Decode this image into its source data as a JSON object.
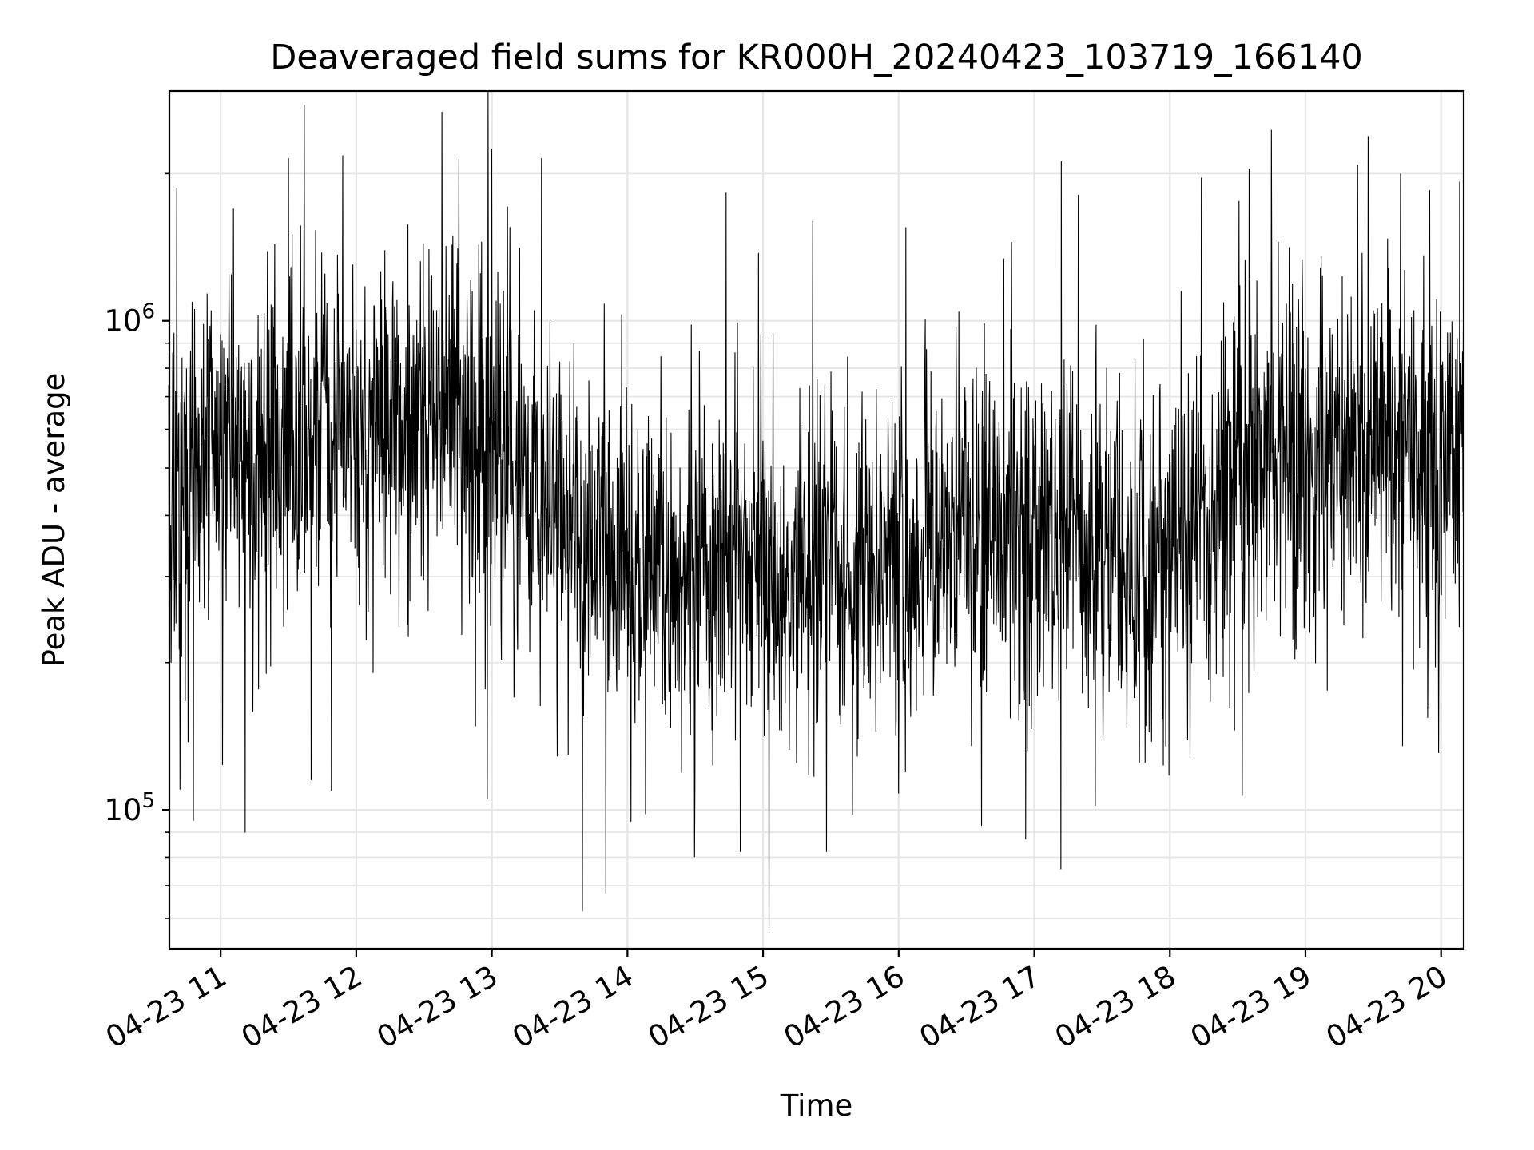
{
  "chart_data": {
    "type": "line",
    "title": "Deaveraged field sums for KR000H_20240423_103719_166140",
    "xlabel": "Time",
    "ylabel": "Peak ADU - average",
    "y_scale": "log",
    "ylim": [
      52000,
      2950000
    ],
    "xlim": [
      "2024-04-23 10:37:19",
      "2024-04-23 20:10:00"
    ],
    "x_ticks": [
      {
        "value": "2024-04-23 11:00",
        "label": "04-23 11"
      },
      {
        "value": "2024-04-23 12:00",
        "label": "04-23 12"
      },
      {
        "value": "2024-04-23 13:00",
        "label": "04-23 13"
      },
      {
        "value": "2024-04-23 14:00",
        "label": "04-23 14"
      },
      {
        "value": "2024-04-23 15:00",
        "label": "04-23 15"
      },
      {
        "value": "2024-04-23 16:00",
        "label": "04-23 16"
      },
      {
        "value": "2024-04-23 17:00",
        "label": "04-23 17"
      },
      {
        "value": "2024-04-23 18:00",
        "label": "04-23 18"
      },
      {
        "value": "2024-04-23 19:00",
        "label": "04-23 19"
      },
      {
        "value": "2024-04-23 20:00",
        "label": "04-23 20"
      }
    ],
    "y_ticks": [
      {
        "value": 100000,
        "base": "10",
        "exp": "5"
      },
      {
        "value": 1000000,
        "base": "10",
        "exp": "6"
      }
    ],
    "grid": true,
    "series_color": "#000000",
    "grid_color": "#e6e6e6",
    "typical_level": [
      [
        "2024-04-23 10:40",
        430000
      ],
      [
        "2024-04-23 11:00",
        520000
      ],
      [
        "2024-04-23 12:00",
        590000
      ],
      [
        "2024-04-23 12:45",
        620000
      ],
      [
        "2024-04-23 13:30",
        420000
      ],
      [
        "2024-04-23 14:00",
        330000
      ],
      [
        "2024-04-23 15:00",
        300000
      ],
      [
        "2024-04-23 15:40",
        310000
      ],
      [
        "2024-04-23 16:30",
        370000
      ],
      [
        "2024-04-23 17:15",
        380000
      ],
      [
        "2024-04-23 17:50",
        290000
      ],
      [
        "2024-04-23 18:30",
        510000
      ],
      [
        "2024-04-23 19:30",
        550000
      ],
      [
        "2024-04-23 20:10",
        500000
      ]
    ],
    "notable_points": [
      [
        "2024-04-23 10:38",
        200000
      ],
      [
        "2024-04-23 10:42",
        110000
      ],
      [
        "2024-04-23 10:48",
        95000
      ],
      [
        "2024-04-23 11:30",
        2150000
      ],
      [
        "2024-04-23 11:40",
        115000
      ],
      [
        "2024-04-23 11:54",
        2180000
      ],
      [
        "2024-04-23 12:58",
        105000
      ],
      [
        "2024-04-23 13:00",
        2250000
      ],
      [
        "2024-04-23 13:22",
        2150000
      ],
      [
        "2024-04-23 13:40",
        62000
      ],
      [
        "2024-04-23 14:08",
        98000
      ],
      [
        "2024-04-23 14:50",
        82000
      ],
      [
        "2024-04-23 15:22",
        1600000
      ],
      [
        "2024-04-23 15:28",
        82000
      ],
      [
        "2024-04-23 16:00",
        108000
      ],
      [
        "2024-04-23 16:50",
        1450000
      ],
      [
        "2024-04-23 17:12",
        2120000
      ],
      [
        "2024-04-23 17:27",
        102000
      ],
      [
        "2024-04-23 18:05",
        1150000
      ],
      [
        "2024-04-23 18:48",
        1450000
      ],
      [
        "2024-04-23 19:42",
        2000000
      ],
      [
        "2024-04-23 19:43",
        135000
      ],
      [
        "2024-04-23 19:55",
        1850000
      ]
    ]
  }
}
